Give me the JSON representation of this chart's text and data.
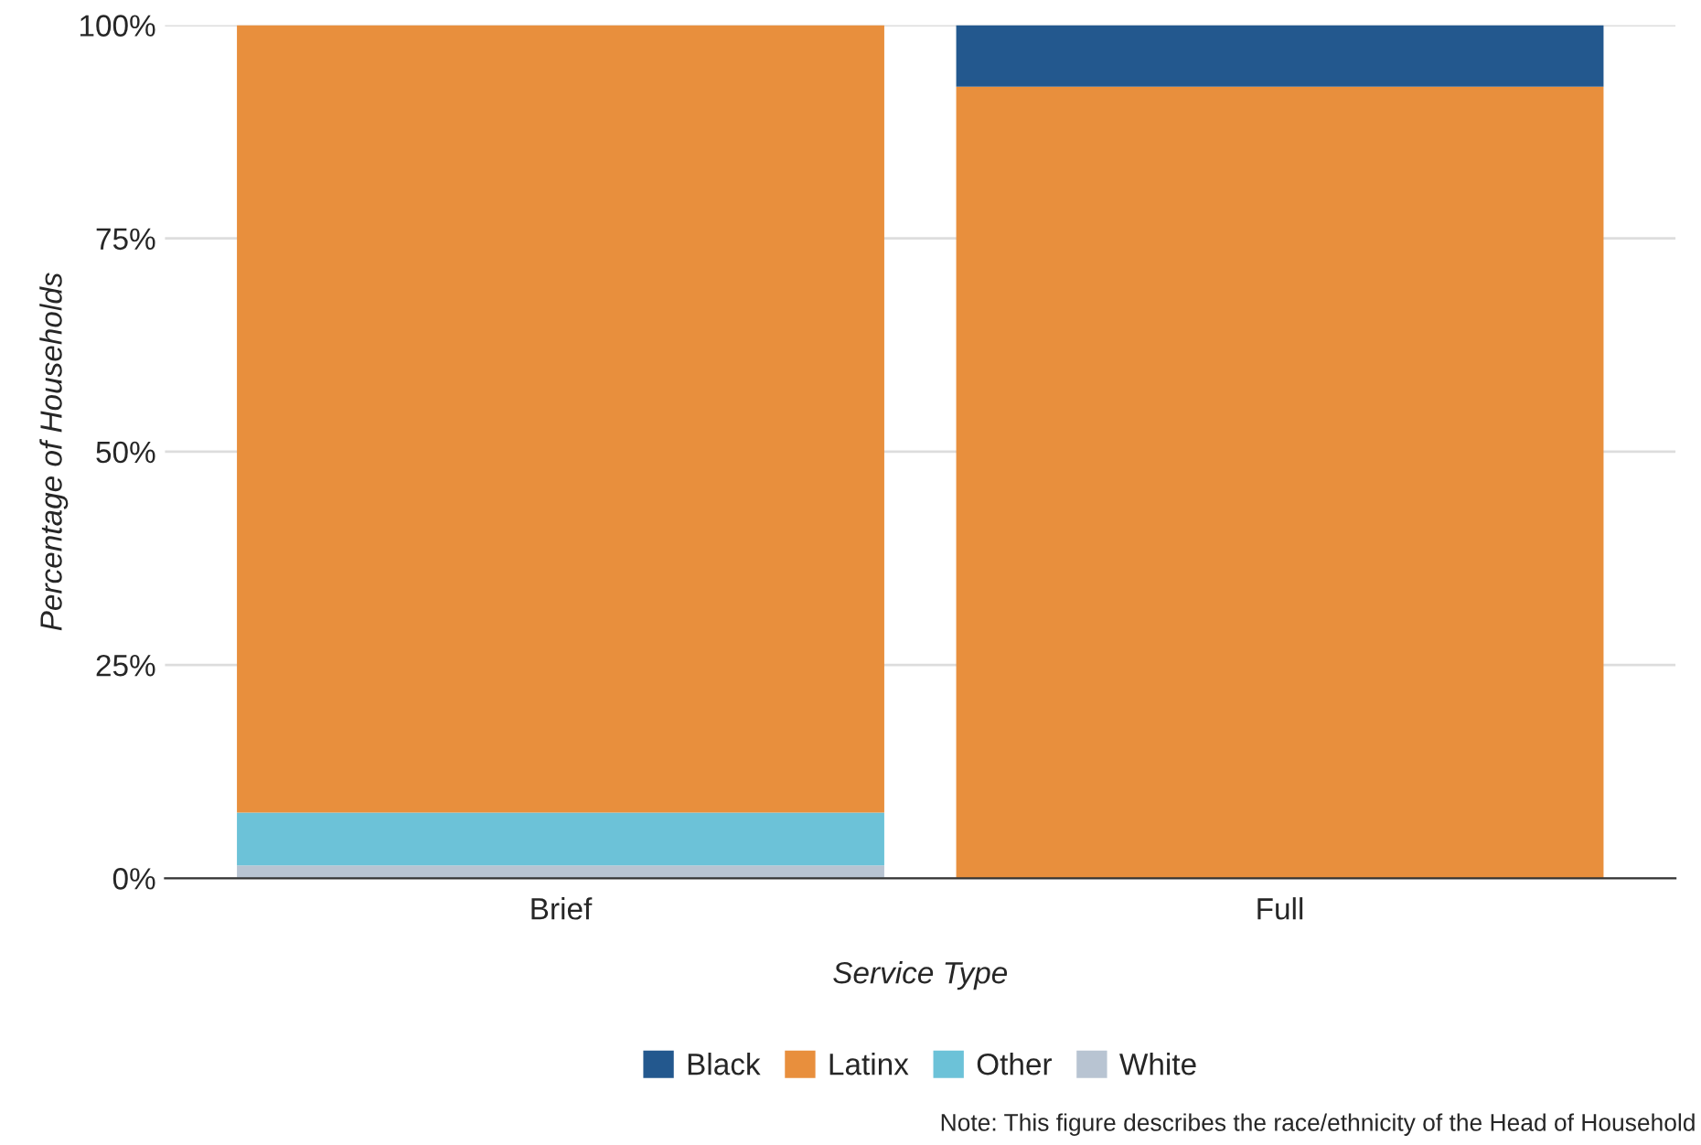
{
  "chart_data": {
    "type": "bar",
    "stacked": true,
    "xlabel": "Service Type",
    "ylabel": "Percentage of Households",
    "categories": [
      "Brief",
      "Full"
    ],
    "series": [
      {
        "name": "White",
        "color": "#b8c4d2",
        "values": [
          1.5,
          0
        ]
      },
      {
        "name": "Other",
        "color": "#6cc2d8",
        "values": [
          6.2,
          0
        ]
      },
      {
        "name": "Latinx",
        "color": "#e88f3d",
        "values": [
          92.3,
          92.8
        ]
      },
      {
        "name": "Black",
        "color": "#23588e",
        "values": [
          0,
          7.2
        ]
      }
    ],
    "ylim": [
      0,
      100
    ],
    "yticks": [
      {
        "value": 0,
        "label": "0%"
      },
      {
        "value": 25,
        "label": "25%"
      },
      {
        "value": 50,
        "label": "50%"
      },
      {
        "value": 75,
        "label": "75%"
      },
      {
        "value": 100,
        "label": "100%"
      }
    ],
    "grid": "y",
    "legend": "bottom",
    "annotations": [
      "Note: This figure describes the race/ethnicity of the Head of Household"
    ]
  }
}
